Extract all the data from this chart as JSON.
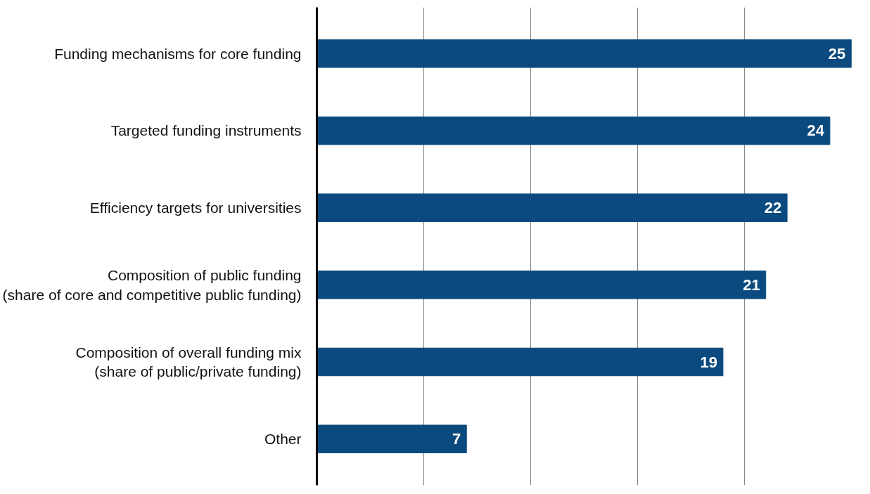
{
  "chart_data": {
    "type": "bar",
    "orientation": "horizontal",
    "categories": [
      "Funding mechanisms for core funding",
      "Targeted funding instruments",
      "Efficiency targets for universities",
      "Composition of public funding\n(share of core and competitive public funding)",
      "Composition of overall funding mix\n(share of public/private funding)",
      "Other"
    ],
    "values": [
      25,
      24,
      22,
      21,
      19,
      7
    ],
    "color": "#0b4a7e",
    "data_labels": true,
    "xticks": [
      {
        "value": 5,
        "label": null
      },
      {
        "value": 10,
        "label": null
      },
      {
        "value": 15,
        "label": null
      },
      {
        "value": 20,
        "label": null
      }
    ],
    "tick_labels": "y",
    "grid": "x"
  }
}
